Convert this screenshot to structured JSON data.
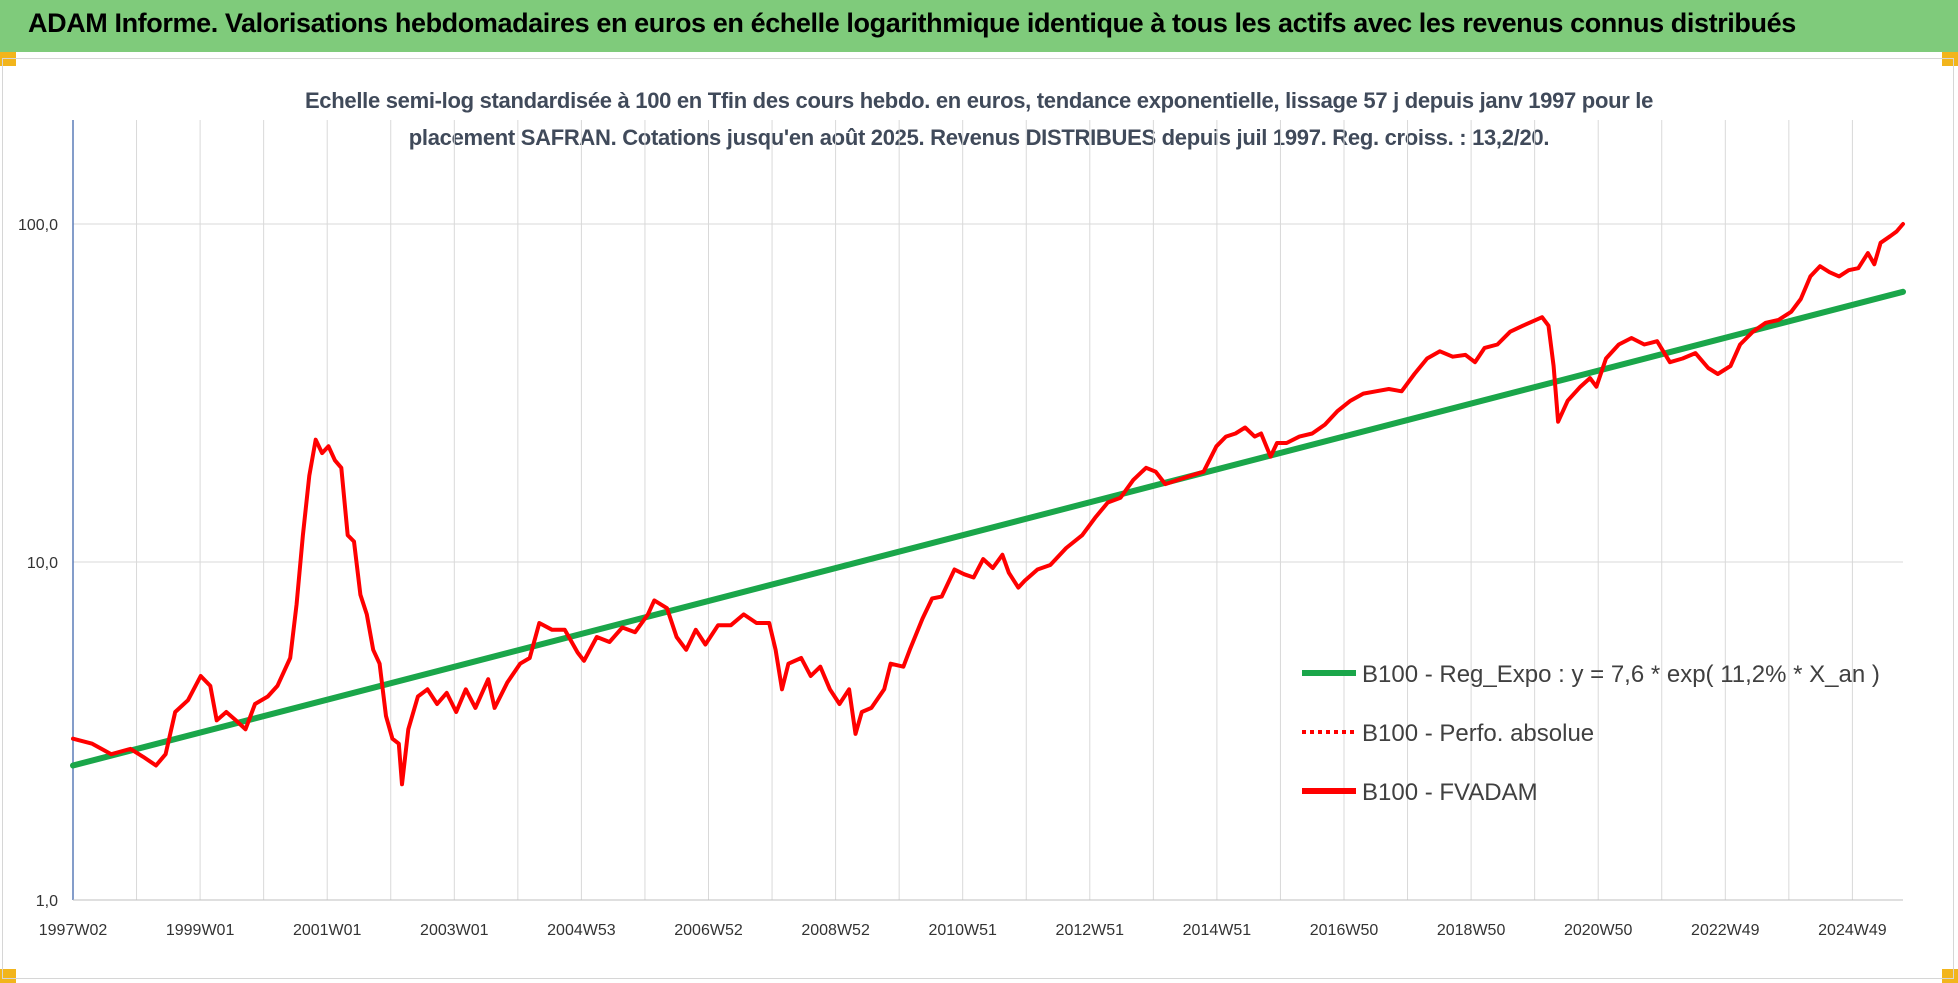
{
  "banner": {
    "title": "ADAM Informe. Valorisations hebdomadaires en euros en échelle logarithmique identique à tous les actifs avec les revenus connus distribués"
  },
  "colors": {
    "banner_bg": "#7fcb7b",
    "corner": "#f2b51c",
    "trend": "#1aa64a",
    "fvadam": "#ff0000",
    "perfo": "#ff0000"
  },
  "chart_data": {
    "type": "line",
    "title_line1": "Echelle semi-log standardisée à 100 en Tfin des cours hebdo. en euros, tendance exponentielle, lissage 57 j depuis janv 1997 pour le",
    "title_line2": "placement SAFRAN. Cotations jusqu'en août 2025. Revenus DISTRIBUES depuis juil 1997. Reg. croiss. : 13,2/20.",
    "y_scale": "log",
    "ylim": [
      1,
      200
    ],
    "y_ticks": [
      {
        "value": 1,
        "label": "1,0"
      },
      {
        "value": 10,
        "label": "10,0"
      },
      {
        "value": 100,
        "label": "100,0"
      }
    ],
    "x_ticks": [
      "1997W02",
      "1999W01",
      "2001W01",
      "2003W01",
      "2004W53",
      "2006W52",
      "2008W52",
      "2010W51",
      "2012W51",
      "2014W51",
      "2016W50",
      "2018W50",
      "2020W50",
      "2022W49",
      "2024W49"
    ],
    "grid": true,
    "legend_position": "bottom-right",
    "series": [
      {
        "name": "B100 - Reg_Expo : y = 7,6 * exp( 11,2% *  X_an )",
        "style": "solid",
        "color": "#1aa64a",
        "points": [
          [
            1997.0,
            2.5
          ],
          [
            2025.65,
            63.0
          ]
        ]
      },
      {
        "name": "B100 - Perfo. absolue",
        "style": "dotted",
        "color": "#ff0000",
        "points": []
      },
      {
        "name": "B100 - FVADAM",
        "style": "solid",
        "color": "#ff0000",
        "points": [
          [
            1997.0,
            3.0
          ],
          [
            1997.3,
            2.9
          ],
          [
            1997.6,
            2.7
          ],
          [
            1997.9,
            2.8
          ],
          [
            1998.1,
            2.65
          ],
          [
            1998.3,
            2.5
          ],
          [
            1998.45,
            2.7
          ],
          [
            1998.6,
            3.6
          ],
          [
            1998.8,
            3.9
          ],
          [
            1999.0,
            4.6
          ],
          [
            1999.15,
            4.3
          ],
          [
            1999.25,
            3.4
          ],
          [
            1999.4,
            3.6
          ],
          [
            1999.55,
            3.4
          ],
          [
            1999.7,
            3.2
          ],
          [
            1999.85,
            3.8
          ],
          [
            2000.05,
            4.0
          ],
          [
            2000.2,
            4.3
          ],
          [
            2000.4,
            5.2
          ],
          [
            2000.5,
            7.5
          ],
          [
            2000.6,
            12.0
          ],
          [
            2000.7,
            18.0
          ],
          [
            2000.8,
            23.0
          ],
          [
            2000.9,
            21.0
          ],
          [
            2001.0,
            22.0
          ],
          [
            2001.1,
            20.0
          ],
          [
            2001.2,
            19.0
          ],
          [
            2001.3,
            12.0
          ],
          [
            2001.4,
            11.5
          ],
          [
            2001.5,
            8.0
          ],
          [
            2001.6,
            7.0
          ],
          [
            2001.7,
            5.5
          ],
          [
            2001.8,
            5.0
          ],
          [
            2001.9,
            3.5
          ],
          [
            2002.0,
            3.0
          ],
          [
            2002.1,
            2.9
          ],
          [
            2002.15,
            2.2
          ],
          [
            2002.25,
            3.2
          ],
          [
            2002.4,
            4.0
          ],
          [
            2002.55,
            4.2
          ],
          [
            2002.7,
            3.8
          ],
          [
            2002.85,
            4.1
          ],
          [
            2003.0,
            3.6
          ],
          [
            2003.15,
            4.2
          ],
          [
            2003.3,
            3.7
          ],
          [
            2003.5,
            4.5
          ],
          [
            2003.6,
            3.7
          ],
          [
            2003.8,
            4.4
          ],
          [
            2004.0,
            5.0
          ],
          [
            2004.15,
            5.2
          ],
          [
            2004.3,
            6.6
          ],
          [
            2004.5,
            6.3
          ],
          [
            2004.7,
            6.3
          ],
          [
            2004.9,
            5.4
          ],
          [
            2005.0,
            5.1
          ],
          [
            2005.2,
            6.0
          ],
          [
            2005.4,
            5.8
          ],
          [
            2005.6,
            6.4
          ],
          [
            2005.8,
            6.2
          ],
          [
            2006.0,
            7.0
          ],
          [
            2006.1,
            7.7
          ],
          [
            2006.3,
            7.3
          ],
          [
            2006.45,
            6.0
          ],
          [
            2006.6,
            5.5
          ],
          [
            2006.75,
            6.3
          ],
          [
            2006.9,
            5.7
          ],
          [
            2007.1,
            6.5
          ],
          [
            2007.3,
            6.5
          ],
          [
            2007.5,
            7.0
          ],
          [
            2007.7,
            6.6
          ],
          [
            2007.9,
            6.6
          ],
          [
            2008.0,
            5.5
          ],
          [
            2008.1,
            4.2
          ],
          [
            2008.2,
            5.0
          ],
          [
            2008.4,
            5.2
          ],
          [
            2008.55,
            4.6
          ],
          [
            2008.7,
            4.9
          ],
          [
            2008.85,
            4.2
          ],
          [
            2009.0,
            3.8
          ],
          [
            2009.15,
            4.2
          ],
          [
            2009.25,
            3.1
          ],
          [
            2009.35,
            3.6
          ],
          [
            2009.5,
            3.7
          ],
          [
            2009.7,
            4.2
          ],
          [
            2009.8,
            5.0
          ],
          [
            2010.0,
            4.9
          ],
          [
            2010.1,
            5.5
          ],
          [
            2010.3,
            6.8
          ],
          [
            2010.45,
            7.8
          ],
          [
            2010.6,
            7.9
          ],
          [
            2010.8,
            9.5
          ],
          [
            2010.95,
            9.2
          ],
          [
            2011.1,
            9.0
          ],
          [
            2011.25,
            10.2
          ],
          [
            2011.4,
            9.6
          ],
          [
            2011.55,
            10.5
          ],
          [
            2011.65,
            9.3
          ],
          [
            2011.8,
            8.4
          ],
          [
            2011.9,
            8.8
          ],
          [
            2012.1,
            9.5
          ],
          [
            2012.3,
            9.8
          ],
          [
            2012.55,
            11.0
          ],
          [
            2012.8,
            12.0
          ],
          [
            2013.0,
            13.5
          ],
          [
            2013.2,
            15.0
          ],
          [
            2013.4,
            15.5
          ],
          [
            2013.6,
            17.5
          ],
          [
            2013.8,
            19.0
          ],
          [
            2013.95,
            18.5
          ],
          [
            2014.1,
            17.0
          ],
          [
            2014.3,
            17.5
          ],
          [
            2014.5,
            18.0
          ],
          [
            2014.7,
            18.5
          ],
          [
            2014.9,
            22.0
          ],
          [
            2015.05,
            23.5
          ],
          [
            2015.2,
            24.0
          ],
          [
            2015.35,
            25.0
          ],
          [
            2015.5,
            23.5
          ],
          [
            2015.6,
            24.0
          ],
          [
            2015.75,
            20.5
          ],
          [
            2015.85,
            22.5
          ],
          [
            2016.0,
            22.5
          ],
          [
            2016.2,
            23.5
          ],
          [
            2016.4,
            24.0
          ],
          [
            2016.6,
            25.5
          ],
          [
            2016.8,
            28.0
          ],
          [
            2017.0,
            30.0
          ],
          [
            2017.2,
            31.5
          ],
          [
            2017.4,
            32.0
          ],
          [
            2017.6,
            32.5
          ],
          [
            2017.8,
            32.0
          ],
          [
            2018.0,
            36.0
          ],
          [
            2018.2,
            40.0
          ],
          [
            2018.4,
            42.0
          ],
          [
            2018.6,
            40.5
          ],
          [
            2018.8,
            41.0
          ],
          [
            2018.95,
            39.0
          ],
          [
            2019.1,
            43.0
          ],
          [
            2019.3,
            44.0
          ],
          [
            2019.5,
            48.0
          ],
          [
            2019.7,
            50.0
          ],
          [
            2019.85,
            51.5
          ],
          [
            2020.0,
            53.0
          ],
          [
            2020.1,
            50.0
          ],
          [
            2020.18,
            38.0
          ],
          [
            2020.25,
            26.0
          ],
          [
            2020.4,
            30.0
          ],
          [
            2020.6,
            33.0
          ],
          [
            2020.75,
            35.0
          ],
          [
            2020.85,
            33.0
          ],
          [
            2021.0,
            40.0
          ],
          [
            2021.2,
            44.0
          ],
          [
            2021.4,
            46.0
          ],
          [
            2021.6,
            44.0
          ],
          [
            2021.8,
            45.0
          ],
          [
            2022.0,
            39.0
          ],
          [
            2022.2,
            40.0
          ],
          [
            2022.4,
            41.5
          ],
          [
            2022.6,
            37.5
          ],
          [
            2022.75,
            36.0
          ],
          [
            2022.95,
            38.0
          ],
          [
            2023.1,
            44.0
          ],
          [
            2023.3,
            48.0
          ],
          [
            2023.5,
            51.0
          ],
          [
            2023.7,
            52.0
          ],
          [
            2023.9,
            55.0
          ],
          [
            2024.05,
            60.0
          ],
          [
            2024.2,
            70.0
          ],
          [
            2024.35,
            75.0
          ],
          [
            2024.5,
            72.0
          ],
          [
            2024.65,
            70.0
          ],
          [
            2024.8,
            73.0
          ],
          [
            2024.95,
            74.0
          ],
          [
            2025.1,
            82.0
          ],
          [
            2025.2,
            76.0
          ],
          [
            2025.3,
            88.0
          ],
          [
            2025.45,
            92.0
          ],
          [
            2025.55,
            95.0
          ],
          [
            2025.65,
            100.0
          ]
        ]
      }
    ]
  }
}
